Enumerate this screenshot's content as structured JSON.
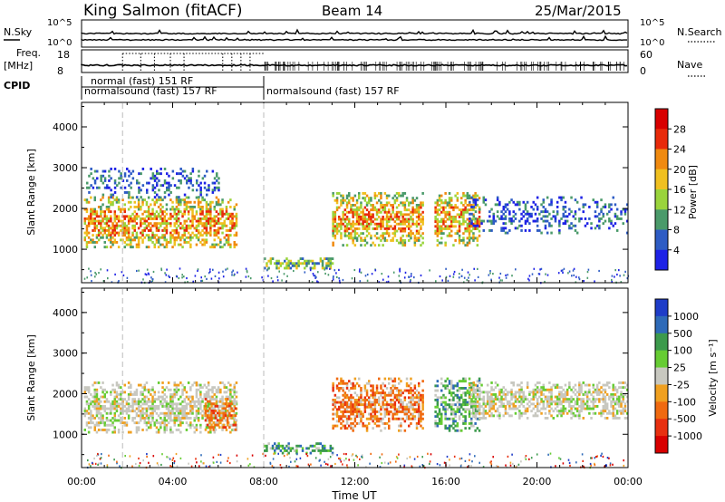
{
  "header": {
    "station": "King Salmon (fitACF)",
    "beam": "Beam 14",
    "date": "25/Mar/2015"
  },
  "summary_panels": {
    "nsky_label": "N.Sky",
    "nsearch_label": "N.Search",
    "nsky_ticks": [
      "10^5",
      "10^0"
    ],
    "nsearch_ticks": [
      "10^5",
      "10^0"
    ],
    "freq_label_line1": "Freq.",
    "freq_label_line2": "[MHz]",
    "freq_ticks": [
      "18",
      "8"
    ],
    "nave_label": "Nave",
    "nave_ticks": [
      "60",
      "0"
    ],
    "cpid_label": "CPID",
    "cpid_segments": [
      {
        "label": "normalsound (fast) 157 RF",
        "start": "00:00",
        "end": "08:00"
      },
      {
        "label": "normal (fast) 151 RF",
        "start": "01:50",
        "end": "08:00"
      },
      {
        "label": "normalsound (fast) 157 RF",
        "start": "08:00",
        "end": "24:00"
      }
    ]
  },
  "chart_data": [
    {
      "type": "heatmap",
      "name": "power",
      "ylabel": "Slant Range [km]",
      "ylim": [
        180,
        4600
      ],
      "yticks": [
        "1000",
        "2000",
        "3000",
        "4000"
      ],
      "colorbar_label": "Power [dB]",
      "colorbar_ticks": [
        "4",
        "8",
        "12",
        "16",
        "20",
        "24",
        "28"
      ],
      "colorbar_colors": [
        "#1e22e6",
        "#2e5cc4",
        "#4a9a6a",
        "#9ad43c",
        "#f0c020",
        "#f08a10",
        "#e82a0a",
        "#d80000"
      ],
      "echo_regions": [
        {
          "t0": 0.1,
          "t1": 6.8,
          "r0": 1050,
          "r1": 2300,
          "intensity": "high"
        },
        {
          "t0": 0.2,
          "t1": 6.0,
          "r0": 2300,
          "r1": 3000,
          "intensity": "low"
        },
        {
          "t0": 8.0,
          "t1": 11.0,
          "r0": 550,
          "r1": 800,
          "intensity": "medium"
        },
        {
          "t0": 11.0,
          "t1": 15.0,
          "r0": 1100,
          "r1": 2400,
          "intensity": "high"
        },
        {
          "t0": 15.5,
          "t1": 17.5,
          "r0": 1100,
          "r1": 2400,
          "intensity": "high"
        },
        {
          "t0": 17.0,
          "t1": 24.0,
          "r0": 1400,
          "r1": 2300,
          "intensity": "low"
        }
      ]
    },
    {
      "type": "heatmap",
      "name": "velocity",
      "ylabel": "Slant Range [km]",
      "ylim": [
        180,
        4600
      ],
      "yticks": [
        "1000",
        "2000",
        "3000",
        "4000"
      ],
      "xlabel": "Time UT",
      "xticks": [
        "00:00",
        "04:00",
        "08:00",
        "12:00",
        "16:00",
        "20:00",
        "00:00"
      ],
      "xlim": [
        0,
        24
      ],
      "colorbar_label": "Velocity [m s⁻¹]",
      "colorbar_ticks": [
        "1000",
        "500",
        "100",
        "25",
        "-25",
        "-100",
        "-500",
        "-1000"
      ],
      "colorbar_colors": [
        "#1e3cc8",
        "#2e6ab8",
        "#3c9a4c",
        "#66cc33",
        "#c8c8c0",
        "#f0a020",
        "#f06a10",
        "#e83010",
        "#d80000"
      ],
      "echo_regions": [
        {
          "t0": 0.1,
          "t1": 6.8,
          "r0": 1050,
          "r1": 2300,
          "dominant": "-25..25"
        },
        {
          "t0": 5.4,
          "t1": 6.8,
          "r0": 1100,
          "r1": 1900,
          "dominant": "-100..-500"
        },
        {
          "t0": 8.0,
          "t1": 11.0,
          "r0": 550,
          "r1": 800,
          "dominant": "100..500"
        },
        {
          "t0": 11.0,
          "t1": 15.0,
          "r0": 1100,
          "r1": 2400,
          "dominant": "-100..-500"
        },
        {
          "t0": 15.5,
          "t1": 17.5,
          "r0": 1100,
          "r1": 2400,
          "dominant": "100..500"
        },
        {
          "t0": 17.0,
          "t1": 24.0,
          "r0": 1400,
          "r1": 2300,
          "dominant": "-25..25"
        }
      ]
    }
  ]
}
